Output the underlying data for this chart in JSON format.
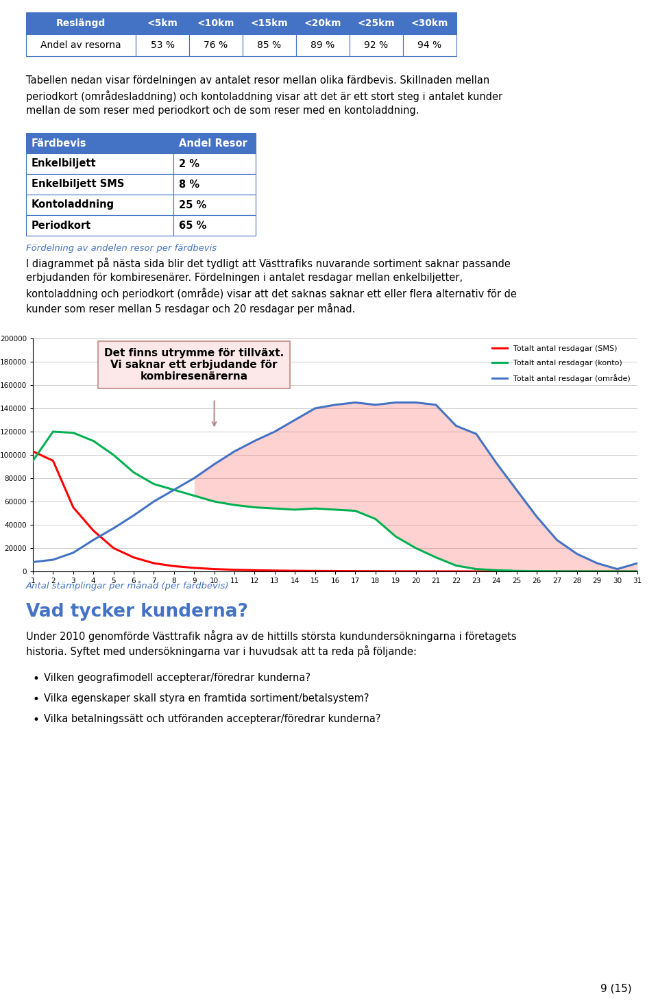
{
  "table1_header": [
    "Reslängd",
    "<5km",
    "<10km",
    "<15km",
    "<20km",
    "<25km",
    "<30km"
  ],
  "table1_row": [
    "Andel av resorna",
    "53 %",
    "76 %",
    "85 %",
    "89 %",
    "92 %",
    "94 %"
  ],
  "table1_header_bg": "#4472c4",
  "table1_header_fg": "#ffffff",
  "table1_row_bg": "#ffffff",
  "table1_border": "#4472c4",
  "para1": "Tabellen nedan visar fördelningen av antalet resor mellan olika färdbevis. Skillnaden mellan\nperiodkort (områdesladdning) och kontoladdning visar att det är ett stort steg i antalet kunder\nmellan de som reser med periodkort och de som reser med en kontoladdning.",
  "table2_header": [
    "Färdbevis",
    "Andel Resor"
  ],
  "table2_rows": [
    [
      "Enkelbiljett",
      "2 %"
    ],
    [
      "Enkelbiljett SMS",
      "8 %"
    ],
    [
      "Kontoladdning",
      "25 %"
    ],
    [
      "Periodkort",
      "65 %"
    ]
  ],
  "table2_header_bg": "#4472c4",
  "table2_header_fg": "#ffffff",
  "table2_row_bg": "#ffffff",
  "table2_border": "#4472c4",
  "caption1": "Fördelning av andelen resor per färdbevis",
  "para2": "I diagrammet på nästa sida blir det tydligt att Västtrafiks nuvarande sortiment saknar passande\nerbjudanden för kombiresenärer. Fördelningen i antalet resdagar mellan enkelbiljetter,\nkontoladdning och periodkort (område) visar att det saknas saknar ett eller flera alternativ för de\nkunder som reser mellan 5 resdagar och 20 resdagar per månad.",
  "chart_xvals": [
    1,
    2,
    3,
    4,
    5,
    6,
    7,
    8,
    9,
    10,
    11,
    12,
    13,
    14,
    15,
    16,
    17,
    18,
    19,
    20,
    21,
    22,
    23,
    24,
    25,
    26,
    27,
    28,
    29,
    30,
    31
  ],
  "sms_vals": [
    103000,
    95000,
    55000,
    35000,
    20000,
    12000,
    7000,
    4500,
    3000,
    2000,
    1400,
    1000,
    700,
    500,
    400,
    300,
    200,
    150,
    100,
    80,
    50,
    30,
    20,
    10,
    5,
    3,
    2,
    1,
    1,
    1,
    1
  ],
  "konto_vals": [
    95000,
    120000,
    119000,
    112000,
    100000,
    85000,
    75000,
    70000,
    65000,
    60000,
    57000,
    55000,
    54000,
    53000,
    54000,
    53000,
    52000,
    45000,
    30000,
    20000,
    12000,
    5000,
    2000,
    1000,
    400,
    200,
    100,
    50,
    20,
    5,
    1
  ],
  "omrade_vals": [
    8000,
    10000,
    16000,
    27000,
    37000,
    48000,
    60000,
    70000,
    80000,
    92000,
    103000,
    112000,
    120000,
    130000,
    140000,
    143000,
    145000,
    143000,
    145000,
    145000,
    143000,
    125000,
    118000,
    93000,
    70000,
    47000,
    27000,
    15000,
    7000,
    2000,
    7000
  ],
  "sms_color": "#ff0000",
  "konto_color": "#00b050",
  "omrade_color": "#4472c4",
  "legend_labels": [
    "Totalt antal resdagar (SMS)",
    "Totalt antal resdagar (konto)",
    "Totalt antal resdagar (område)"
  ],
  "box_text": "Det finns utrymme för tillväxt.\nVi saknar ett erbjudande för\nkombiresenärerna",
  "chart_caption": "Antal stämplingar per månad (per färdbevis)",
  "section_title": "Vad tycker kunderna?",
  "para3": "Under 2010 genomförde Västtrafik några av de hittills största kundundersökningarna i företagets\nhistoria. Syftet med undersökningarna var i huvudsak att ta reda på följande:",
  "bullets": [
    "Vilken geografimodell accepterar/föredrar kunderna?",
    "Vilka egenskaper skall styra en framtida sortiment/betalsystem?",
    "Vilka betalningssätt och utföranden accepterar/föredrar kunderna?"
  ],
  "page_num": "9 (15)",
  "bg_color": "#ffffff",
  "text_color": "#000000",
  "caption_color": "#4472c4",
  "section_title_color": "#4472c4"
}
